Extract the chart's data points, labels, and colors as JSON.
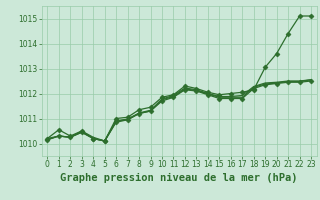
{
  "title": "Graphe pression niveau de la mer (hPa)",
  "x_labels": [
    "0",
    "1",
    "2",
    "3",
    "4",
    "5",
    "6",
    "7",
    "8",
    "9",
    "10",
    "11",
    "12",
    "13",
    "14",
    "15",
    "16",
    "17",
    "18",
    "19",
    "20",
    "21",
    "22",
    "23"
  ],
  "ylim": [
    1009.5,
    1015.5
  ],
  "yticks": [
    1010,
    1011,
    1012,
    1013,
    1014,
    1015
  ],
  "background_color": "#cce8d8",
  "grid_color": "#99ccaa",
  "line_color": "#2d6e2d",
  "series": [
    [
      1010.2,
      1010.55,
      1010.3,
      1010.5,
      1010.2,
      1010.1,
      1011.0,
      1011.05,
      1011.35,
      1011.45,
      1011.85,
      1011.95,
      1012.3,
      1012.2,
      1012.05,
      1011.95,
      1012.0,
      1012.05,
      1012.15,
      1013.05,
      1013.6,
      1014.4,
      1015.1,
      1015.1
    ],
    [
      1010.15,
      1010.3,
      1010.25,
      1010.45,
      1010.2,
      1010.1,
      1010.85,
      1010.95,
      1011.2,
      1011.3,
      1011.7,
      1011.85,
      1012.15,
      1012.1,
      1011.95,
      1011.8,
      1011.8,
      1011.8,
      1012.2,
      1012.35,
      1012.4,
      1012.45,
      1012.45,
      1012.5
    ],
    [
      1010.15,
      1010.3,
      1010.25,
      1010.45,
      1010.2,
      1010.1,
      1010.9,
      1010.95,
      1011.2,
      1011.3,
      1011.75,
      1011.88,
      1012.18,
      1012.12,
      1011.98,
      1011.85,
      1011.85,
      1011.85,
      1012.25,
      1012.38,
      1012.42,
      1012.48,
      1012.48,
      1012.55
    ],
    [
      1010.2,
      1010.3,
      1010.25,
      1010.5,
      1010.25,
      1010.1,
      1010.9,
      1010.98,
      1011.22,
      1011.33,
      1011.78,
      1011.92,
      1012.22,
      1012.15,
      1012.0,
      1011.88,
      1011.88,
      1011.92,
      1012.28,
      1012.42,
      1012.45,
      1012.5,
      1012.5,
      1012.55
    ]
  ],
  "marker_series_indices": [
    0,
    1
  ],
  "marker": "D",
  "marker_size": 2.5,
  "line_width": 0.9,
  "title_fontsize": 7.5,
  "tick_fontsize": 5.5
}
